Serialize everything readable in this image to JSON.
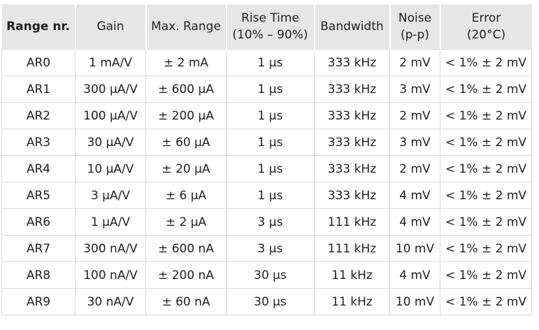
{
  "table": {
    "header": [
      [
        "Range nr."
      ],
      [
        "Gain"
      ],
      [
        "Max. Range"
      ],
      [
        "Rise Time",
        "(10% – 90%)"
      ],
      [
        "Bandwidth"
      ],
      [
        "Noise",
        "(p-p)"
      ],
      [
        "Error",
        "(20°C)"
      ]
    ],
    "rows": [
      [
        "AR0",
        "1 mA/V",
        "± 2 mA",
        "1 µs",
        "333 kHz",
        "2 mV",
        "< 1% ± 2 mV"
      ],
      [
        "AR1",
        "300 µA/V",
        "± 600 µA",
        "1 µs",
        "333 kHz",
        "3 mV",
        "< 1% ± 2 mV"
      ],
      [
        "AR2",
        "100 µA/V",
        "± 200 µA",
        "1 µs",
        "333 kHz",
        "2 mV",
        "< 1% ± 2 mV"
      ],
      [
        "AR3",
        "30 µA/V",
        "± 60 µA",
        "1 µs",
        "333 kHz",
        "3 mV",
        "< 1% ± 2 mV"
      ],
      [
        "AR4",
        "10 µA/V",
        "± 20 µA",
        "1 µs",
        "333 kHz",
        "2 mV",
        "< 1% ± 2 mV"
      ],
      [
        "AR5",
        "3 µA/V",
        "± 6 µA",
        "1 µs",
        "333 kHz",
        "4 mV",
        "< 1% ± 2 mV"
      ],
      [
        "AR6",
        "1 µA/V",
        "± 2 µA",
        "3 µs",
        "111 kHz",
        "4 mV",
        "< 1% ± 2 mV"
      ],
      [
        "AR7",
        "300 nA/V",
        "± 600 nA",
        "3 µs",
        "111 kHz",
        "10 mV",
        "< 1% ± 2 mV"
      ],
      [
        "AR8",
        "100 nA/V",
        "± 200 nA",
        "30 µs",
        "11 kHz",
        "4 mV",
        "< 1% ± 2 mV"
      ],
      [
        "AR9",
        "30 nA/V",
        "± 60 nA",
        "30 µs",
        "11 kHz",
        "10 mV",
        "< 1% ± 2 mV"
      ]
    ]
  }
}
